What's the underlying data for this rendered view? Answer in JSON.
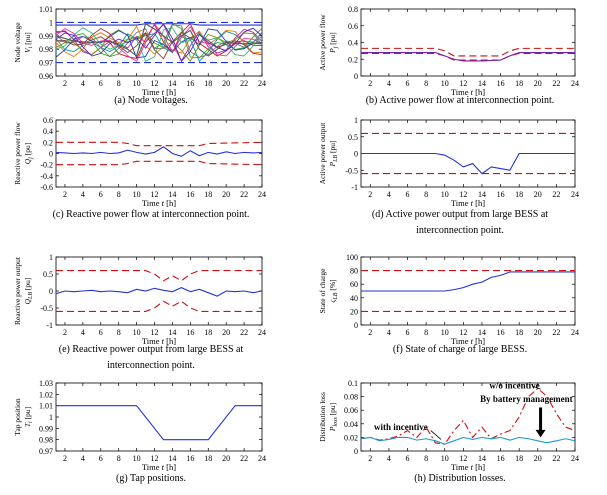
{
  "chart_data": [
    {
      "id": "a",
      "type": "line",
      "caption": "(a) Node voltages.",
      "ylabel": "Node voltage",
      "ysym": "V",
      "ysub": "i",
      "yunit": "[pu]",
      "xlabel": "Time",
      "xsym": "t",
      "xunit": "[h]",
      "xlim": [
        1,
        24
      ],
      "ylim": [
        0.96,
        1.01
      ],
      "xticks": [
        2,
        4,
        6,
        8,
        10,
        12,
        14,
        16,
        18,
        20,
        22,
        24
      ],
      "yticks": [
        0.96,
        0.97,
        0.98,
        0.99,
        1,
        1.01
      ],
      "yticklabels": [
        "0.96",
        "0.97",
        "0.98",
        "0.99",
        "1",
        "1.01"
      ],
      "limits": [
        {
          "y": 1.0,
          "color": "#2233dd"
        },
        {
          "y": 0.97,
          "color": "#2233dd"
        }
      ],
      "spaghetti": true,
      "series": [
        {
          "color": "#2233dd",
          "x": [
            1,
            9,
            10,
            11,
            12,
            14,
            16,
            17,
            18,
            24
          ],
          "y": [
            0.998,
            0.998,
            0.998,
            0.999,
            0.999,
            0.999,
            0.999,
            0.998,
            0.998,
            0.998
          ]
        },
        {
          "color": "#555555",
          "x": [
            1,
            3,
            5,
            7,
            9,
            10,
            11,
            12,
            13,
            14,
            15,
            16,
            17,
            18,
            20,
            22,
            24
          ],
          "y": [
            0.99,
            0.986,
            0.985,
            0.986,
            0.98,
            0.975,
            0.999,
            0.995,
            0.99,
            0.985,
            0.99,
            0.994,
            0.98,
            0.975,
            0.985,
            0.984,
            0.985
          ]
        }
      ]
    },
    {
      "id": "b",
      "type": "line",
      "caption": "(b) Active power flow at interconnection point.",
      "ylabel": "Active power flow",
      "ysym": "P",
      "ysub": "j",
      "yunit": "[pu]",
      "xlabel": "Time",
      "xsym": "t",
      "xunit": "[h]",
      "xlim": [
        1,
        24
      ],
      "ylim": [
        0,
        0.8
      ],
      "xticks": [
        2,
        4,
        6,
        8,
        10,
        12,
        14,
        16,
        18,
        20,
        22,
        24
      ],
      "yticks": [
        0,
        0.2,
        0.4,
        0.6,
        0.8
      ],
      "yticklabels": [
        "0",
        "0.2",
        "0.4",
        "0.6",
        "0.8"
      ],
      "series": [
        {
          "color": "#cc1111",
          "dash": "7,4",
          "x": [
            1,
            9,
            10,
            11,
            16,
            17,
            18,
            24
          ],
          "y": [
            0.33,
            0.33,
            0.3,
            0.24,
            0.24,
            0.3,
            0.33,
            0.33
          ]
        },
        {
          "color": "#cc1111",
          "dash": "7,4",
          "x": [
            1,
            9,
            10,
            11,
            16,
            17,
            18,
            24
          ],
          "y": [
            0.27,
            0.27,
            0.24,
            0.19,
            0.19,
            0.24,
            0.27,
            0.27
          ]
        },
        {
          "color": "#7722aa",
          "x": [
            1,
            9,
            10,
            11,
            12,
            14,
            16,
            17,
            18,
            24
          ],
          "y": [
            0.28,
            0.28,
            0.24,
            0.2,
            0.18,
            0.18,
            0.19,
            0.24,
            0.28,
            0.28
          ]
        }
      ]
    },
    {
      "id": "c",
      "type": "line",
      "caption": "(c) Reactive power flow at interconnection point.",
      "ylabel": "Reactive power flow",
      "ysym": "Q",
      "ysub": "j",
      "yunit": "[pu]",
      "xlabel": "Time",
      "xsym": "t",
      "xunit": "[h]",
      "xlim": [
        1,
        24
      ],
      "ylim": [
        -0.6,
        0.6
      ],
      "xticks": [
        2,
        4,
        6,
        8,
        10,
        12,
        14,
        16,
        18,
        20,
        22,
        24
      ],
      "yticks": [
        -0.6,
        -0.4,
        -0.2,
        0,
        0.2,
        0.4,
        0.6
      ],
      "yticklabels": [
        "-0.6",
        "-0.4",
        "-0.2",
        "0",
        "0.2",
        "0.4",
        "0.6"
      ],
      "series": [
        {
          "color": "#cc1111",
          "dash": "7,4",
          "x": [
            1,
            8,
            9,
            10,
            11,
            17,
            18,
            24
          ],
          "y": [
            0.2,
            0.2,
            0.18,
            0.14,
            0.14,
            0.14,
            0.18,
            0.2
          ]
        },
        {
          "color": "#cc1111",
          "dash": "7,4",
          "x": [
            1,
            8,
            9,
            10,
            11,
            17,
            18,
            24
          ],
          "y": [
            -0.2,
            -0.2,
            -0.18,
            -0.14,
            -0.14,
            -0.14,
            -0.18,
            -0.2
          ]
        },
        {
          "color": "#2233dd",
          "x": [
            1,
            2,
            3,
            4,
            5,
            6,
            7,
            8,
            9,
            10,
            11,
            12,
            13,
            14,
            15,
            16,
            17,
            18,
            19,
            20,
            21,
            22,
            23,
            24
          ],
          "y": [
            0.02,
            0.01,
            0.0,
            0.01,
            0.0,
            0.02,
            0.0,
            0.01,
            0.06,
            0.02,
            -0.01,
            0.02,
            0.12,
            0.0,
            -0.05,
            0.05,
            -0.04,
            0.02,
            -0.01,
            0.03,
            0.0,
            0.02,
            0.01,
            0.02
          ]
        }
      ]
    },
    {
      "id": "d",
      "type": "line",
      "caption": "(d) Active power output from large BESS at interconnection point.",
      "caption_lines": [
        "(d) Active power output from large BESS at",
        "interconnection point."
      ],
      "ylabel": "Active power output",
      "ysym": "P",
      "ysub": "LB",
      "yunit": "[pu]",
      "xlabel": "Time",
      "xsym": "t",
      "xunit": "[h]",
      "xlim": [
        1,
        24
      ],
      "ylim": [
        -1,
        1
      ],
      "xticks": [
        2,
        4,
        6,
        8,
        10,
        12,
        14,
        16,
        18,
        20,
        22,
        24
      ],
      "yticks": [
        -1,
        -0.5,
        0,
        0.5,
        1
      ],
      "yticklabels": [
        "-1",
        "-0.5",
        "0",
        "0.5",
        "1"
      ],
      "series": [
        {
          "color": "#cc1111",
          "dash": "7,4",
          "x": [
            1,
            24
          ],
          "y": [
            0.6,
            0.6
          ]
        },
        {
          "color": "#cc1111",
          "dash": "7,4",
          "x": [
            1,
            24
          ],
          "y": [
            -0.6,
            -0.6
          ]
        },
        {
          "color": "#2233dd",
          "x": [
            1,
            9,
            10,
            11,
            12,
            13,
            14,
            15,
            16,
            17,
            18,
            24
          ],
          "y": [
            0,
            0,
            -0.05,
            -0.2,
            -0.4,
            -0.3,
            -0.6,
            -0.4,
            -0.45,
            -0.5,
            0,
            0
          ]
        }
      ]
    },
    {
      "id": "e",
      "type": "line",
      "caption": "(e) Reactive power output from large BESS at interconnection point.",
      "caption_lines": [
        "(e) Reactive power output from large BESS at",
        "interconnection point."
      ],
      "ylabel": "Reactive power output",
      "ysym": "Q",
      "ysub": "LB",
      "yunit": "[pu]",
      "xlabel": "Time",
      "xsym": "t",
      "xunit": "[h]",
      "xlim": [
        1,
        24
      ],
      "ylim": [
        -1,
        1
      ],
      "xticks": [
        2,
        4,
        6,
        8,
        10,
        12,
        14,
        16,
        18,
        20,
        22,
        24
      ],
      "yticks": [
        -1,
        -0.5,
        0,
        0.5,
        1
      ],
      "yticklabels": [
        "-1",
        "-0.5",
        "0",
        "0.5",
        "1"
      ],
      "series": [
        {
          "color": "#cc1111",
          "dash": "7,4",
          "x": [
            1,
            10,
            11,
            12,
            13,
            14,
            15,
            16,
            17,
            18,
            24
          ],
          "y": [
            0.6,
            0.6,
            0.6,
            0.5,
            0.3,
            0.45,
            0.3,
            0.5,
            0.6,
            0.6,
            0.6
          ]
        },
        {
          "color": "#cc1111",
          "dash": "7,4",
          "x": [
            1,
            10,
            11,
            12,
            13,
            14,
            15,
            16,
            17,
            18,
            24
          ],
          "y": [
            -0.6,
            -0.6,
            -0.6,
            -0.5,
            -0.3,
            -0.45,
            -0.3,
            -0.5,
            -0.6,
            -0.6,
            -0.6
          ]
        },
        {
          "color": "#2233dd",
          "x": [
            1,
            2,
            3,
            4,
            5,
            6,
            7,
            8,
            9,
            10,
            11,
            12,
            13,
            14,
            15,
            16,
            17,
            18,
            19,
            20,
            21,
            22,
            23,
            24
          ],
          "y": [
            -0.08,
            0.0,
            -0.02,
            0.0,
            0.02,
            -0.02,
            0.0,
            -0.02,
            -0.05,
            0.05,
            0.0,
            0.08,
            0.02,
            -0.02,
            0.1,
            -0.02,
            0.05,
            -0.05,
            -0.15,
            0.0,
            -0.02,
            0.0,
            -0.05,
            0.0
          ]
        }
      ]
    },
    {
      "id": "f",
      "type": "line",
      "caption": "(f) State of charge of large BESS.",
      "ylabel": "State of charge",
      "ysym": "ς",
      "ysub": "LB",
      "yunit": "[%]",
      "xlabel": "Time",
      "xsym": "t",
      "xunit": "[h]",
      "xlim": [
        1,
        24
      ],
      "ylim": [
        0,
        100
      ],
      "xticks": [
        2,
        4,
        6,
        8,
        10,
        12,
        14,
        16,
        18,
        20,
        22,
        24
      ],
      "yticks": [
        0,
        20,
        40,
        60,
        80,
        100
      ],
      "yticklabels": [
        "0",
        "20",
        "40",
        "60",
        "80",
        "100"
      ],
      "series": [
        {
          "color": "#cc1111",
          "dash": "7,4",
          "x": [
            1,
            24
          ],
          "y": [
            80,
            80
          ]
        },
        {
          "color": "#cc1111",
          "dash": "7,4",
          "x": [
            1,
            24
          ],
          "y": [
            20,
            20
          ]
        },
        {
          "color": "#2233dd",
          "x": [
            1,
            10,
            11,
            12,
            13,
            14,
            15,
            16,
            17,
            18,
            24
          ],
          "y": [
            50,
            50,
            52,
            55,
            60,
            63,
            70,
            73,
            78,
            78,
            78
          ]
        }
      ]
    },
    {
      "id": "g",
      "type": "line",
      "caption": "(g) Tap positions.",
      "ylabel": "Tap position",
      "ysym": "T",
      "ysub": "i",
      "yunit": "[pu]",
      "xlabel": "Time",
      "xsym": "t",
      "xunit": "[h]",
      "xlim": [
        1,
        24
      ],
      "ylim": [
        0.97,
        1.03
      ],
      "xticks": [
        2,
        4,
        6,
        8,
        10,
        12,
        14,
        16,
        18,
        20,
        22,
        24
      ],
      "yticks": [
        0.97,
        0.98,
        0.99,
        1,
        1.01,
        1.02,
        1.03
      ],
      "yticklabels": [
        "0.97",
        "0.98",
        "0.99",
        "1",
        "1.01",
        "1.02",
        "1.03"
      ],
      "series": [
        {
          "color": "#2233dd",
          "x": [
            1,
            10,
            13,
            18,
            21,
            24
          ],
          "y": [
            1.01,
            1.01,
            0.98,
            0.98,
            1.01,
            1.01
          ]
        }
      ]
    },
    {
      "id": "h",
      "type": "line",
      "caption": "(h) Distribution losses.",
      "ylabel": "Distribution loss",
      "ysym": "P",
      "ysub": "loss",
      "yunit": "[pu]",
      "xlabel": "Time",
      "xsym": "t",
      "xunit": "[h]",
      "xlim": [
        1,
        24
      ],
      "ylim": [
        0,
        0.1
      ],
      "xticks": [
        2,
        4,
        6,
        8,
        10,
        12,
        14,
        16,
        18,
        20,
        22,
        24
      ],
      "yticks": [
        0,
        0.02,
        0.04,
        0.06,
        0.08,
        0.1
      ],
      "yticklabels": [
        "0",
        "0.02",
        "0.04",
        "0.06",
        "0.08",
        "0.1"
      ],
      "series": [
        {
          "name": "w/o incentive",
          "color": "#cc1111",
          "dash": "7,3,2,3",
          "x": [
            1,
            2,
            3,
            4,
            5,
            6,
            7,
            8,
            9,
            10,
            11,
            12,
            13,
            14,
            15,
            16,
            17,
            18,
            19,
            20,
            21,
            22,
            23,
            24
          ],
          "y": [
            0.018,
            0.02,
            0.016,
            0.018,
            0.022,
            0.03,
            0.02,
            0.035,
            0.012,
            0.01,
            0.03,
            0.045,
            0.02,
            0.035,
            0.018,
            0.025,
            0.03,
            0.05,
            0.08,
            0.092,
            0.08,
            0.055,
            0.035,
            0.03
          ]
        },
        {
          "name": "with incentive",
          "color": "#2299cc",
          "x": [
            1,
            2,
            3,
            4,
            5,
            6,
            7,
            8,
            9,
            10,
            11,
            12,
            13,
            14,
            15,
            16,
            17,
            18,
            19,
            20,
            21,
            22,
            23,
            24
          ],
          "y": [
            0.018,
            0.02,
            0.015,
            0.017,
            0.02,
            0.02,
            0.016,
            0.018,
            0.015,
            0.01,
            0.015,
            0.02,
            0.017,
            0.02,
            0.018,
            0.02,
            0.016,
            0.02,
            0.018,
            0.015,
            0.012,
            0.015,
            0.018,
            0.015
          ]
        }
      ],
      "annotations": [
        "w/o incentive",
        "with incentive",
        "By battery management"
      ]
    }
  ]
}
